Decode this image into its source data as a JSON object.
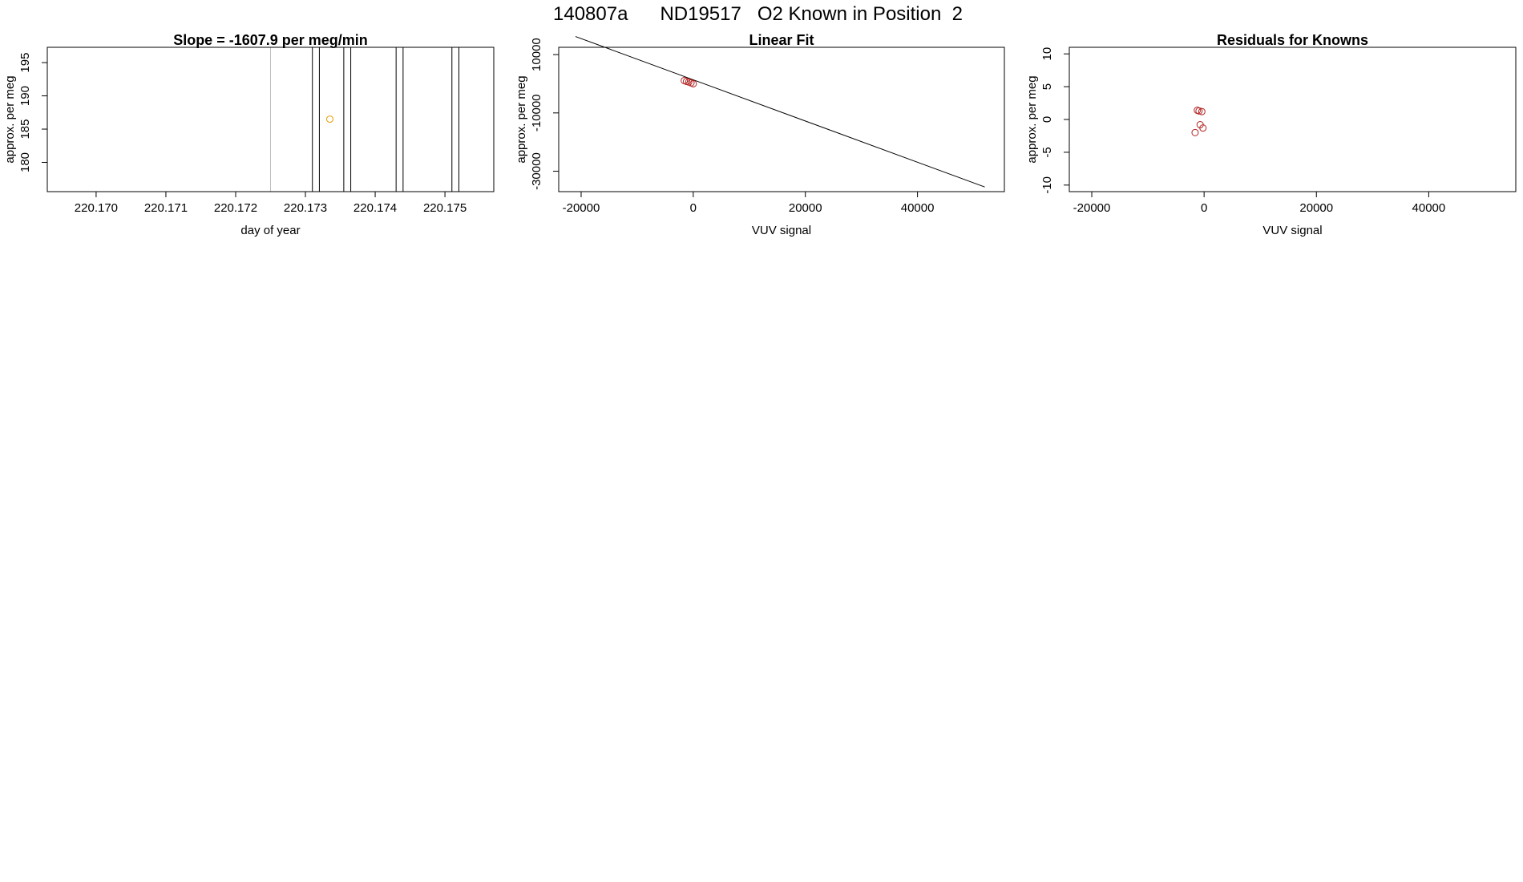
{
  "figure_title": "140807a      ND19517   O2 Known in Position  2",
  "colors": {
    "axis": "#000000",
    "marker_orange": "#E69F00",
    "marker_red": "#B22222",
    "vline_dark": "#000000",
    "vline_light": "#BEBEBE",
    "fit_line": "#000000"
  },
  "chart_data": [
    {
      "type": "scatter",
      "title": "Slope =  -1607.9  per meg/min",
      "xlabel": "day of year",
      "ylabel": "approx. per meg",
      "xlim": [
        220.1693,
        220.1757
      ],
      "ylim": [
        175.6,
        197.3
      ],
      "xticks": [
        220.17,
        220.171,
        220.172,
        220.173,
        220.174,
        220.175
      ],
      "xtick_labels": [
        "220.170",
        "220.171",
        "220.172",
        "220.173",
        "220.174",
        "220.175"
      ],
      "yticks": [
        180,
        185,
        190,
        195
      ],
      "ytick_labels": [
        "180",
        "185",
        "190",
        "195"
      ],
      "vlines_dark": [
        220.1731,
        220.1732,
        220.17355,
        220.17365,
        220.1743,
        220.1744,
        220.1751,
        220.1752
      ],
      "vlines_light": [
        220.1725
      ],
      "points": [
        {
          "x": 220.17335,
          "y": 186.5
        }
      ],
      "grid": false
    },
    {
      "type": "scatter",
      "title": "Linear Fit",
      "xlabel": "VUV signal",
      "ylabel": "approx. per meg",
      "xlim": [
        -24000,
        55500
      ],
      "ylim": [
        -37000,
        12500
      ],
      "xticks": [
        -20000,
        0,
        20000,
        40000
      ],
      "xtick_labels": [
        "-20000",
        "0",
        "20000",
        "40000"
      ],
      "yticks": [
        -30000,
        -10000,
        10000
      ],
      "ytick_labels": [
        "-30000",
        "-10000",
        "10000"
      ],
      "fit_line": {
        "x": [
          -21000,
          52000
        ],
        "y": [
          16200,
          -35400
        ]
      },
      "points": [
        {
          "x": -1600,
          "y": 1100
        },
        {
          "x": -1200,
          "y": 800
        },
        {
          "x": -800,
          "y": 600
        },
        {
          "x": -400,
          "y": 300
        },
        {
          "x": 0,
          "y": 0
        }
      ],
      "grid": false
    },
    {
      "type": "scatter",
      "title": "Residuals for Knowns",
      "xlabel": "VUV signal",
      "ylabel": "approx. per meg",
      "xlim": [
        -24000,
        55500
      ],
      "ylim": [
        -11,
        11
      ],
      "xticks": [
        -20000,
        0,
        20000,
        40000
      ],
      "xtick_labels": [
        "-20000",
        "0",
        "20000",
        "40000"
      ],
      "yticks": [
        -10,
        -5,
        0,
        5,
        10
      ],
      "ytick_labels": [
        "-10",
        "-5",
        "0",
        "5",
        "10"
      ],
      "points": [
        {
          "x": -1200,
          "y": 1.4
        },
        {
          "x": -900,
          "y": 1.3
        },
        {
          "x": -400,
          "y": 1.2
        },
        {
          "x": -700,
          "y": -0.8
        },
        {
          "x": -200,
          "y": -1.3
        },
        {
          "x": -1600,
          "y": -2.0
        }
      ],
      "grid": false
    }
  ]
}
